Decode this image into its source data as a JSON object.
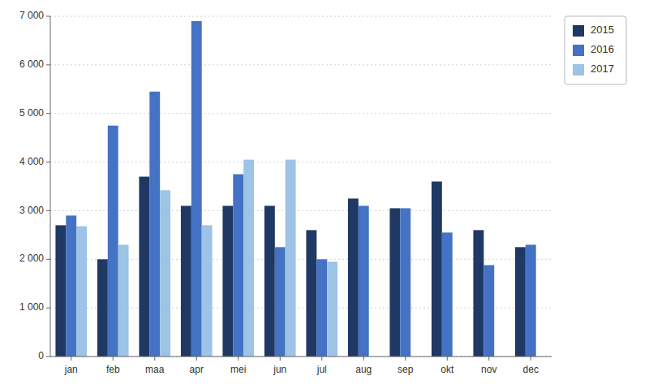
{
  "chart_data": {
    "type": "bar",
    "categories": [
      "jan",
      "feb",
      "maa",
      "apr",
      "mei",
      "jun",
      "jul",
      "aug",
      "sep",
      "okt",
      "nov",
      "dec"
    ],
    "series": [
      {
        "name": "2015",
        "color": "#1f3864",
        "values": [
          2700,
          2000,
          3700,
          3100,
          3100,
          3100,
          2600,
          3250,
          3050,
          3600,
          2600,
          2250
        ]
      },
      {
        "name": "2016",
        "color": "#4472c4",
        "values": [
          2900,
          4750,
          5450,
          6900,
          3750,
          2250,
          2000,
          3100,
          3050,
          2550,
          1880,
          2300
        ]
      },
      {
        "name": "2017",
        "color": "#9dc3e6",
        "values": [
          2680,
          2300,
          3420,
          2700,
          4050,
          4050,
          1950,
          null,
          null,
          null,
          null,
          null
        ]
      }
    ],
    "ylim": [
      0,
      7000
    ],
    "yticks": [
      0,
      {
        "value": 1000,
        "label": "1 000"
      },
      {
        "value": 2000,
        "label": "2 000"
      },
      {
        "value": 3000,
        "label": "3 000"
      },
      {
        "value": 4000,
        "label": "4 000"
      },
      {
        "value": 5000,
        "label": "5 000"
      },
      {
        "value": 6000,
        "label": "6 000"
      },
      {
        "value": 7000,
        "label": "7 000"
      }
    ],
    "grid": true,
    "legend": "upper right"
  }
}
